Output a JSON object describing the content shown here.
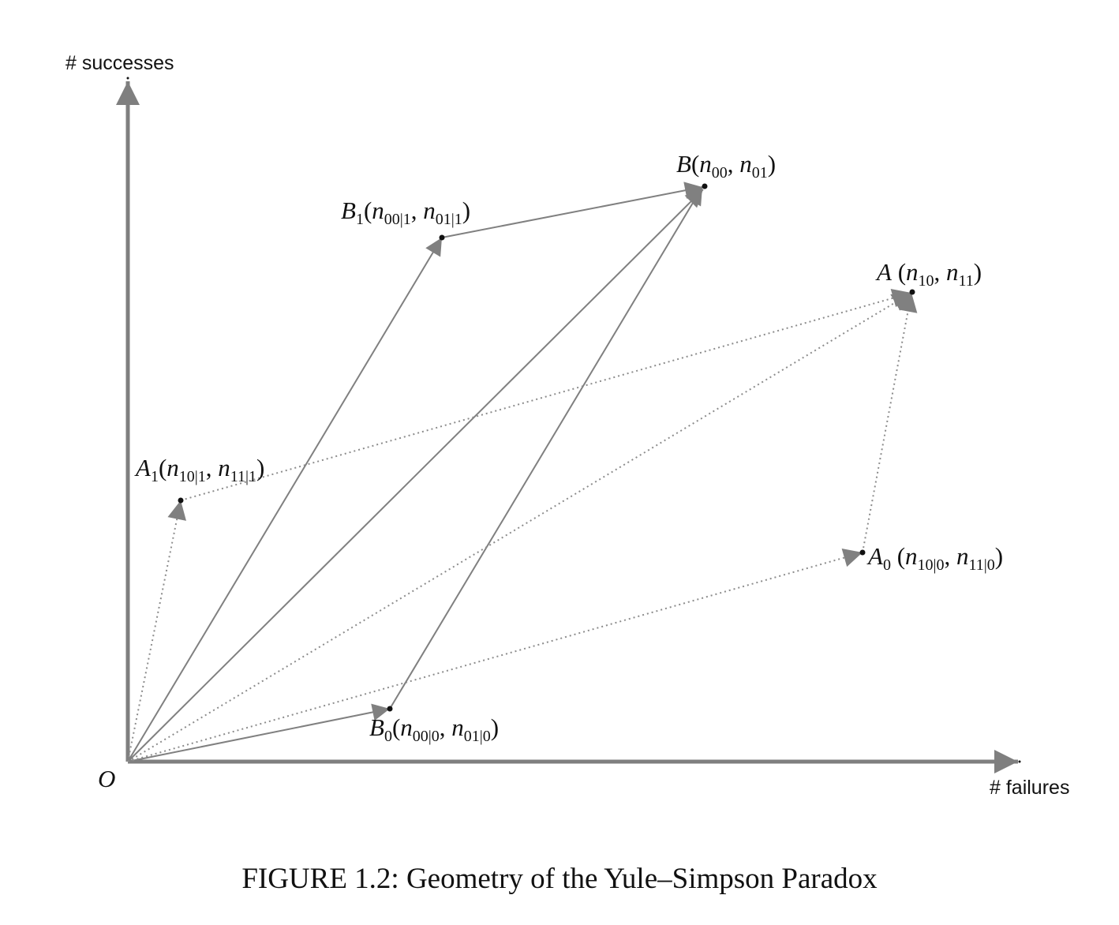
{
  "axes": {
    "y_label": "# successes",
    "x_label": "# failures",
    "origin_label": "O"
  },
  "colors": {
    "axis": "#7f7f7f",
    "vector": "#808080",
    "dotted": "#8c8c8c",
    "point": "#111111"
  },
  "points": {
    "B": {
      "label": "B",
      "sub": "",
      "coords": [
        "n",
        "00",
        "n",
        "01"
      ]
    },
    "B1": {
      "label": "B",
      "sub": "1",
      "coords": [
        "n",
        "00|1",
        "n",
        "01|1"
      ]
    },
    "B0": {
      "label": "B",
      "sub": "0",
      "coords": [
        "n",
        "00|0",
        "n",
        "01|0"
      ]
    },
    "A": {
      "label": "A",
      "sub": "",
      "coords": [
        "n",
        "10",
        "n",
        "11"
      ]
    },
    "A1": {
      "label": "A",
      "sub": "1",
      "coords": [
        "n",
        "10|1",
        "n",
        "11|1"
      ]
    },
    "A0": {
      "label": "A",
      "sub": "0",
      "coords": [
        "n",
        "10|0",
        "n",
        "11|0"
      ]
    }
  },
  "caption": "FIGURE 1.2: Geometry of the Yule–Simpson Paradox"
}
